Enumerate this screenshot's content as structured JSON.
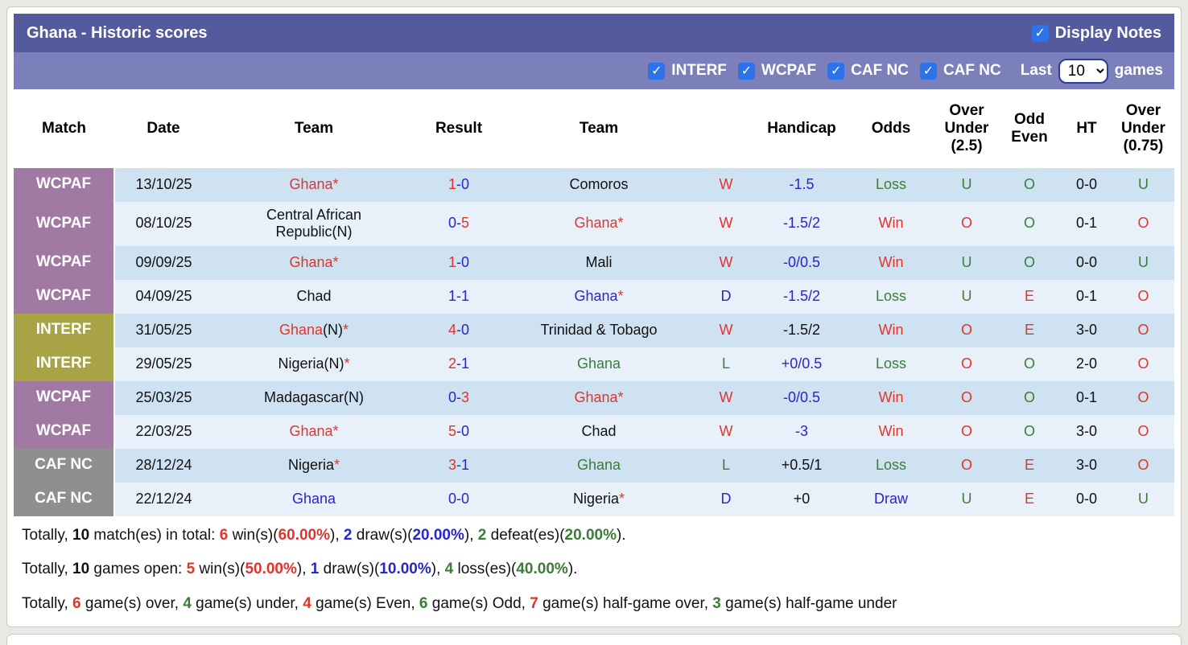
{
  "header": {
    "title": "Ghana - Historic scores",
    "display_notes_label": "Display Notes",
    "display_notes_checked": true
  },
  "filter_bar": {
    "filters": [
      {
        "label": "INTERF",
        "checked": true
      },
      {
        "label": "WCPAF",
        "checked": true
      },
      {
        "label": "CAF NC",
        "checked": true
      },
      {
        "label": "CAF NC",
        "checked": true
      }
    ],
    "last_label": "Last",
    "last_value": "10",
    "games_label": "games"
  },
  "colors": {
    "red": "#e2342b",
    "blue": "#2626cb",
    "green": "#3b7d37",
    "title_bar": "#545a9e",
    "filter_bar": "#7b80ba",
    "row_dark": "#cfe2f1",
    "row_light": "#e8f1fa"
  },
  "badge_colors": {
    "WCPAF": "#a17aa4",
    "INTERF": "#a8a344",
    "CAF NC": "#8f8f8f"
  },
  "table": {
    "columns": [
      "Match",
      "Date",
      "Team",
      "Result",
      "Team",
      "",
      "Handicap",
      "Odds",
      "Over\nUnder\n(2.5)",
      "Odd\nEven",
      "HT",
      "Over\nUnder\n(0.75)"
    ],
    "rows": [
      {
        "badge": "WCPAF",
        "date": "13/10/25",
        "team1": [
          {
            "t": "Ghana*",
            "c": "red"
          }
        ],
        "result": [
          {
            "t": "1",
            "c": "red"
          },
          {
            "t": "-0",
            "c": "blue"
          }
        ],
        "team2": [
          {
            "t": "Comoros",
            "c": "black"
          }
        ],
        "wdl": {
          "t": "W",
          "c": "red"
        },
        "handicap": {
          "t": "-1.5",
          "c": "blue"
        },
        "odds": {
          "t": "Loss",
          "c": "green"
        },
        "ou25": {
          "t": "U",
          "c": "green"
        },
        "oe": {
          "t": "O",
          "c": "green"
        },
        "ht": "0-0",
        "ou075": {
          "t": "U",
          "c": "green"
        }
      },
      {
        "badge": "WCPAF",
        "date": "08/10/25",
        "team1": [
          {
            "t": "Central African Republic(N)",
            "c": "black"
          }
        ],
        "result": [
          {
            "t": "0-",
            "c": "blue"
          },
          {
            "t": "5",
            "c": "red"
          }
        ],
        "team2": [
          {
            "t": "Ghana*",
            "c": "red"
          }
        ],
        "wdl": {
          "t": "W",
          "c": "red"
        },
        "handicap": {
          "t": "-1.5/2",
          "c": "blue"
        },
        "odds": {
          "t": "Win",
          "c": "red"
        },
        "ou25": {
          "t": "O",
          "c": "red"
        },
        "oe": {
          "t": "O",
          "c": "green"
        },
        "ht": "0-1",
        "ou075": {
          "t": "O",
          "c": "red"
        }
      },
      {
        "badge": "WCPAF",
        "date": "09/09/25",
        "team1": [
          {
            "t": "Ghana*",
            "c": "red"
          }
        ],
        "result": [
          {
            "t": "1",
            "c": "red"
          },
          {
            "t": "-0",
            "c": "blue"
          }
        ],
        "team2": [
          {
            "t": "Mali",
            "c": "black"
          }
        ],
        "wdl": {
          "t": "W",
          "c": "red"
        },
        "handicap": {
          "t": "-0/0.5",
          "c": "blue"
        },
        "odds": {
          "t": "Win",
          "c": "red"
        },
        "ou25": {
          "t": "U",
          "c": "green"
        },
        "oe": {
          "t": "O",
          "c": "green"
        },
        "ht": "0-0",
        "ou075": {
          "t": "U",
          "c": "green"
        }
      },
      {
        "badge": "WCPAF",
        "date": "04/09/25",
        "team1": [
          {
            "t": "Chad",
            "c": "black"
          }
        ],
        "result": [
          {
            "t": "1-1",
            "c": "blue"
          }
        ],
        "team2": [
          {
            "t": "Ghana",
            "c": "blue"
          },
          {
            "t": "*",
            "c": "red"
          }
        ],
        "wdl": {
          "t": "D",
          "c": "blue"
        },
        "handicap": {
          "t": "-1.5/2",
          "c": "blue"
        },
        "odds": {
          "t": "Loss",
          "c": "green"
        },
        "ou25": {
          "t": "U",
          "c": "green"
        },
        "oe": {
          "t": "E",
          "c": "red"
        },
        "ht": "0-1",
        "ou075": {
          "t": "O",
          "c": "red"
        }
      },
      {
        "badge": "INTERF",
        "date": "31/05/25",
        "team1": [
          {
            "t": "Ghana",
            "c": "red"
          },
          {
            "t": "(N)",
            "c": "black"
          },
          {
            "t": "*",
            "c": "red"
          }
        ],
        "result": [
          {
            "t": "4",
            "c": "red"
          },
          {
            "t": "-0",
            "c": "blue"
          }
        ],
        "team2": [
          {
            "t": "Trinidad & Tobago",
            "c": "black"
          }
        ],
        "wdl": {
          "t": "W",
          "c": "red"
        },
        "handicap": {
          "t": "-1.5/2",
          "c": "black"
        },
        "odds": {
          "t": "Win",
          "c": "red"
        },
        "ou25": {
          "t": "O",
          "c": "red"
        },
        "oe": {
          "t": "E",
          "c": "red"
        },
        "ht": "3-0",
        "ou075": {
          "t": "O",
          "c": "red"
        }
      },
      {
        "badge": "INTERF",
        "date": "29/05/25",
        "team1": [
          {
            "t": "Nigeria(N)",
            "c": "black"
          },
          {
            "t": "*",
            "c": "red"
          }
        ],
        "result": [
          {
            "t": "2",
            "c": "red"
          },
          {
            "t": "-1",
            "c": "blue"
          }
        ],
        "team2": [
          {
            "t": "Ghana",
            "c": "green"
          }
        ],
        "wdl": {
          "t": "L",
          "c": "green"
        },
        "handicap": {
          "t": "+0/0.5",
          "c": "blue"
        },
        "odds": {
          "t": "Loss",
          "c": "green"
        },
        "ou25": {
          "t": "O",
          "c": "red"
        },
        "oe": {
          "t": "O",
          "c": "green"
        },
        "ht": "2-0",
        "ou075": {
          "t": "O",
          "c": "red"
        }
      },
      {
        "badge": "WCPAF",
        "date": "25/03/25",
        "team1": [
          {
            "t": "Madagascar(N)",
            "c": "black"
          }
        ],
        "result": [
          {
            "t": "0-",
            "c": "blue"
          },
          {
            "t": "3",
            "c": "red"
          }
        ],
        "team2": [
          {
            "t": "Ghana*",
            "c": "red"
          }
        ],
        "wdl": {
          "t": "W",
          "c": "red"
        },
        "handicap": {
          "t": "-0/0.5",
          "c": "blue"
        },
        "odds": {
          "t": "Win",
          "c": "red"
        },
        "ou25": {
          "t": "O",
          "c": "red"
        },
        "oe": {
          "t": "O",
          "c": "green"
        },
        "ht": "0-1",
        "ou075": {
          "t": "O",
          "c": "red"
        }
      },
      {
        "badge": "WCPAF",
        "date": "22/03/25",
        "team1": [
          {
            "t": "Ghana*",
            "c": "red"
          }
        ],
        "result": [
          {
            "t": "5",
            "c": "red"
          },
          {
            "t": "-0",
            "c": "blue"
          }
        ],
        "team2": [
          {
            "t": "Chad",
            "c": "black"
          }
        ],
        "wdl": {
          "t": "W",
          "c": "red"
        },
        "handicap": {
          "t": "-3",
          "c": "blue"
        },
        "odds": {
          "t": "Win",
          "c": "red"
        },
        "ou25": {
          "t": "O",
          "c": "red"
        },
        "oe": {
          "t": "O",
          "c": "green"
        },
        "ht": "3-0",
        "ou075": {
          "t": "O",
          "c": "red"
        }
      },
      {
        "badge": "CAF NC",
        "date": "28/12/24",
        "team1": [
          {
            "t": "Nigeria",
            "c": "black"
          },
          {
            "t": "*",
            "c": "red"
          }
        ],
        "result": [
          {
            "t": "3",
            "c": "red"
          },
          {
            "t": "-1",
            "c": "blue"
          }
        ],
        "team2": [
          {
            "t": "Ghana",
            "c": "green"
          }
        ],
        "wdl": {
          "t": "L",
          "c": "green"
        },
        "handicap": {
          "t": "+0.5/1",
          "c": "black"
        },
        "odds": {
          "t": "Loss",
          "c": "green"
        },
        "ou25": {
          "t": "O",
          "c": "red"
        },
        "oe": {
          "t": "E",
          "c": "red"
        },
        "ht": "3-0",
        "ou075": {
          "t": "O",
          "c": "red"
        }
      },
      {
        "badge": "CAF NC",
        "date": "22/12/24",
        "team1": [
          {
            "t": "Ghana",
            "c": "blue"
          }
        ],
        "result": [
          {
            "t": "0-0",
            "c": "blue"
          }
        ],
        "team2": [
          {
            "t": "Nigeria",
            "c": "black"
          },
          {
            "t": "*",
            "c": "red"
          }
        ],
        "wdl": {
          "t": "D",
          "c": "blue"
        },
        "handicap": {
          "t": "+0",
          "c": "black"
        },
        "odds": {
          "t": "Draw",
          "c": "blue"
        },
        "ou25": {
          "t": "U",
          "c": "green"
        },
        "oe": {
          "t": "E",
          "c": "red"
        },
        "ht": "0-0",
        "ou075": {
          "t": "U",
          "c": "green"
        }
      }
    ]
  },
  "summary": {
    "lines": [
      [
        {
          "t": "Totally, "
        },
        {
          "t": "10",
          "b": true
        },
        {
          "t": " match(es) in total: "
        },
        {
          "t": "6",
          "c": "red",
          "b": true
        },
        {
          "t": " win(s)("
        },
        {
          "t": "60.00%",
          "c": "red",
          "b": true
        },
        {
          "t": "), "
        },
        {
          "t": "2",
          "c": "blue",
          "b": true
        },
        {
          "t": " draw(s)("
        },
        {
          "t": "20.00%",
          "c": "blue",
          "b": true
        },
        {
          "t": "), "
        },
        {
          "t": "2",
          "c": "green",
          "b": true
        },
        {
          "t": " defeat(es)("
        },
        {
          "t": "20.00%",
          "c": "green",
          "b": true
        },
        {
          "t": ")."
        }
      ],
      [
        {
          "t": "Totally, "
        },
        {
          "t": "10",
          "b": true
        },
        {
          "t": " games open: "
        },
        {
          "t": "5",
          "c": "red",
          "b": true
        },
        {
          "t": " win(s)("
        },
        {
          "t": "50.00%",
          "c": "red",
          "b": true
        },
        {
          "t": "), "
        },
        {
          "t": "1",
          "c": "blue",
          "b": true
        },
        {
          "t": " draw(s)("
        },
        {
          "t": "10.00%",
          "c": "blue",
          "b": true
        },
        {
          "t": "), "
        },
        {
          "t": "4",
          "c": "green",
          "b": true
        },
        {
          "t": " loss(es)("
        },
        {
          "t": "40.00%",
          "c": "green",
          "b": true
        },
        {
          "t": ")."
        }
      ],
      [
        {
          "t": "Totally, "
        },
        {
          "t": "6",
          "c": "red",
          "b": true
        },
        {
          "t": " game(s) over, "
        },
        {
          "t": "4",
          "c": "green",
          "b": true
        },
        {
          "t": " game(s) under, "
        },
        {
          "t": "4",
          "c": "red",
          "b": true
        },
        {
          "t": " game(s) Even, "
        },
        {
          "t": "6",
          "c": "green",
          "b": true
        },
        {
          "t": " game(s) Odd, "
        },
        {
          "t": "7",
          "c": "red",
          "b": true
        },
        {
          "t": " game(s) half-game over, "
        },
        {
          "t": "3",
          "c": "green",
          "b": true
        },
        {
          "t": " game(s) half-game under"
        }
      ]
    ]
  }
}
